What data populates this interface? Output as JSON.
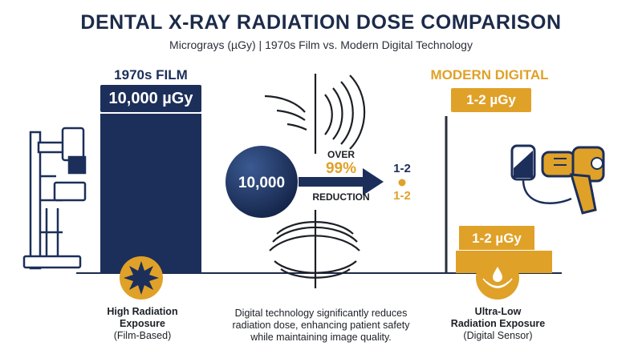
{
  "title": "DENTAL X-RAY RADIATION DOSE COMPARISON",
  "subtitle": "Micrograys (µGy) | 1970s Film vs. Modern Digital Technology",
  "colors": {
    "navy": "#1c2f5a",
    "gold": "#e0a128",
    "dark": "#2a2f3a"
  },
  "chart_data": {
    "type": "bar",
    "title": "DENTAL X-RAY RADIATION DOSE COMPARISON",
    "subtitle": "Micrograys (µGy) | 1970s Film vs. Modern Digital Technology",
    "categories": [
      "1970s FILM",
      "MODERN DIGITAL"
    ],
    "values": [
      10000,
      2
    ],
    "value_labels": [
      "10,000 µGy",
      "1-2 µGy"
    ],
    "unit": "µGy"
  },
  "left": {
    "heading": "1970s FILM",
    "badge": "10,000 µGy",
    "icon": "burst-icon",
    "caption_bold_1": "High Radiation",
    "caption_bold_2": "Exposure",
    "caption_sub": "(Film-Based)"
  },
  "center": {
    "ball_value": "10,000",
    "over": "OVER",
    "percent": "99%",
    "reduction": "REDUCTION",
    "right_value_top": "1-2",
    "right_value_bottom": "1-2",
    "caption": [
      "Digital technology significantly reduces",
      "radiation dose, enhancing patient safety",
      "while maintaining image quality."
    ]
  },
  "right": {
    "heading": "MODERN DIGITAL",
    "badge": "1-2 µGy",
    "bar_label": "1-2 µGy",
    "icon": "drop-icon",
    "caption_bold_1": "Ultra-Low",
    "caption_bold_2": "Radiation Exposure",
    "caption_sub": "(Digital Sensor)"
  }
}
